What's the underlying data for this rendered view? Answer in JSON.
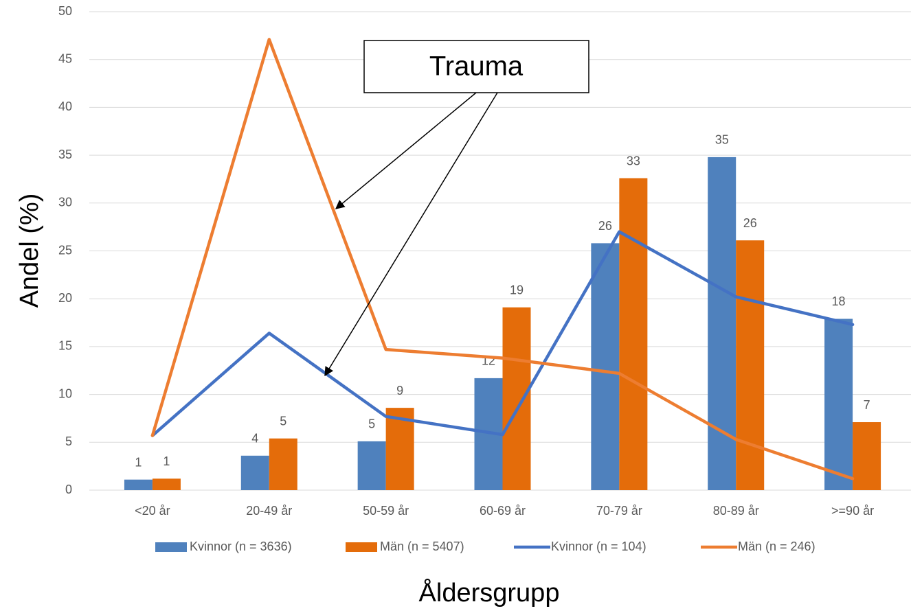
{
  "chart_data": {
    "type": "bar",
    "categories": [
      "<20 år",
      "20-49 år",
      "50-59 år",
      "60-69 år",
      "70-79 år",
      "80-89 år",
      ">=90 år"
    ],
    "series": [
      {
        "name": "Kvinnor (n = 3636)",
        "type": "bar",
        "color": "#4f81bd",
        "values": [
          1.1,
          3.6,
          5.1,
          11.7,
          25.8,
          34.8,
          17.9
        ],
        "value_labels": [
          "1",
          "4",
          "5",
          "12",
          "26",
          "35",
          "18"
        ]
      },
      {
        "name": "Män (n = 5407)",
        "type": "bar",
        "color": "#e46c0a",
        "values": [
          1.2,
          5.4,
          8.6,
          19.1,
          32.6,
          26.1,
          7.1
        ],
        "value_labels": [
          "1",
          "5",
          "9",
          "19",
          "33",
          "26",
          "7"
        ]
      },
      {
        "name": "Kvinnor (n = 104)",
        "type": "line",
        "color": "#4472c4",
        "values": [
          5.7,
          16.4,
          7.7,
          5.8,
          27.0,
          20.2,
          17.3
        ]
      },
      {
        "name": "Män (n = 246)",
        "type": "line",
        "color": "#ed7d31",
        "values": [
          5.7,
          47.1,
          14.7,
          13.8,
          12.2,
          5.3,
          1.2
        ]
      }
    ],
    "ylim": [
      0,
      50
    ],
    "yticks": [
      0,
      5,
      10,
      15,
      20,
      25,
      30,
      35,
      40,
      45,
      50
    ],
    "grid": true,
    "y_label": "Andel (%)",
    "x_label": "Åldersgrupp",
    "annotations": [
      "Trauma"
    ],
    "legend": "bottom"
  }
}
